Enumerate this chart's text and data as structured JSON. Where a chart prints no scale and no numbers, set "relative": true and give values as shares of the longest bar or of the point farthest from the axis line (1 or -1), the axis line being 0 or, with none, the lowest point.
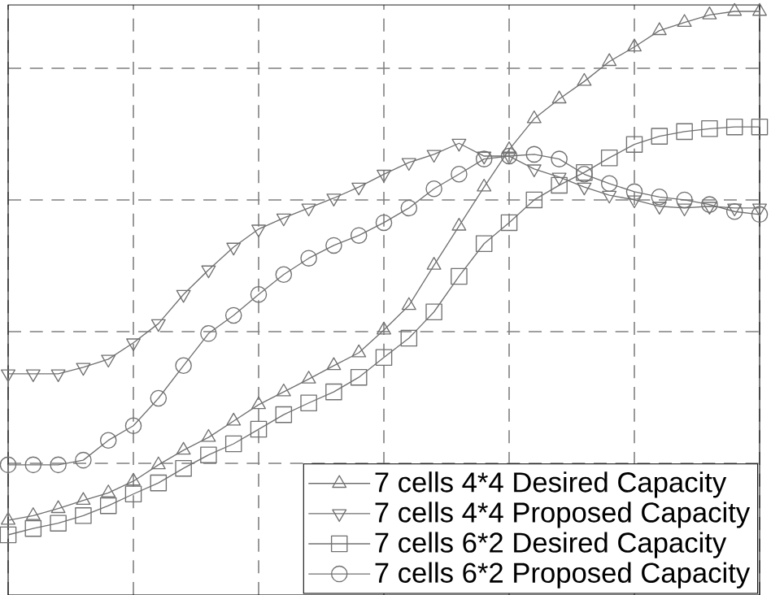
{
  "chart_data": {
    "type": "line",
    "relative": true,
    "grid": true,
    "legend": "bottom right",
    "categories": [
      null,
      null,
      null,
      null,
      null,
      null,
      null,
      null,
      null,
      null,
      null,
      null,
      null,
      null,
      null,
      null,
      null,
      null,
      null,
      null,
      null,
      null,
      null,
      null,
      null,
      null,
      null,
      null,
      null,
      null,
      null
    ],
    "series": [
      {
        "name": "7 cells 4*4 Desired Capacity",
        "color": "#707070",
        "marker": "triangle",
        "values": [
          0.128,
          0.136,
          0.148,
          0.162,
          0.175,
          0.195,
          0.223,
          0.248,
          0.27,
          0.298,
          0.326,
          0.348,
          0.37,
          0.393,
          0.415,
          0.454,
          0.496,
          0.565,
          0.632,
          0.699,
          0.763,
          0.816,
          0.85,
          0.88,
          0.914,
          0.939,
          0.967,
          0.981,
          0.994,
          1,
          1
        ]
      },
      {
        "name": "7 cells 4*4 Proposed Capacity",
        "color": "#707070",
        "marker": "triangle-down",
        "values": [
          0.379,
          0.379,
          0.379,
          0.39,
          0.404,
          0.432,
          0.465,
          0.515,
          0.557,
          0.596,
          0.627,
          0.646,
          0.663,
          0.68,
          0.699,
          0.721,
          0.741,
          0.755,
          0.774,
          0.752,
          0.752,
          0.73,
          0.716,
          0.699,
          0.685,
          0.677,
          0.666,
          0.663,
          0.666,
          0.663,
          0.663
        ]
      },
      {
        "name": "7 cells 6*2 Desired Capacity",
        "color": "#707070",
        "marker": "square",
        "values": [
          0.103,
          0.114,
          0.123,
          0.136,
          0.153,
          0.173,
          0.192,
          0.217,
          0.24,
          0.259,
          0.284,
          0.309,
          0.329,
          0.348,
          0.373,
          0.407,
          0.44,
          0.485,
          0.546,
          0.602,
          0.638,
          0.677,
          0.702,
          0.724,
          0.749,
          0.772,
          0.786,
          0.794,
          0.799,
          0.802,
          0.802
        ]
      },
      {
        "name": "7 cells 6*2 Proposed Capacity",
        "color": "#707070",
        "marker": "circle",
        "values": [
          0.223,
          0.223,
          0.223,
          0.231,
          0.265,
          0.29,
          0.337,
          0.393,
          0.448,
          0.479,
          0.515,
          0.549,
          0.577,
          0.599,
          0.616,
          0.638,
          0.663,
          0.696,
          0.721,
          0.747,
          0.752,
          0.755,
          0.747,
          0.721,
          0.705,
          0.691,
          0.682,
          0.677,
          0.669,
          0.657,
          0.652
        ]
      }
    ]
  }
}
